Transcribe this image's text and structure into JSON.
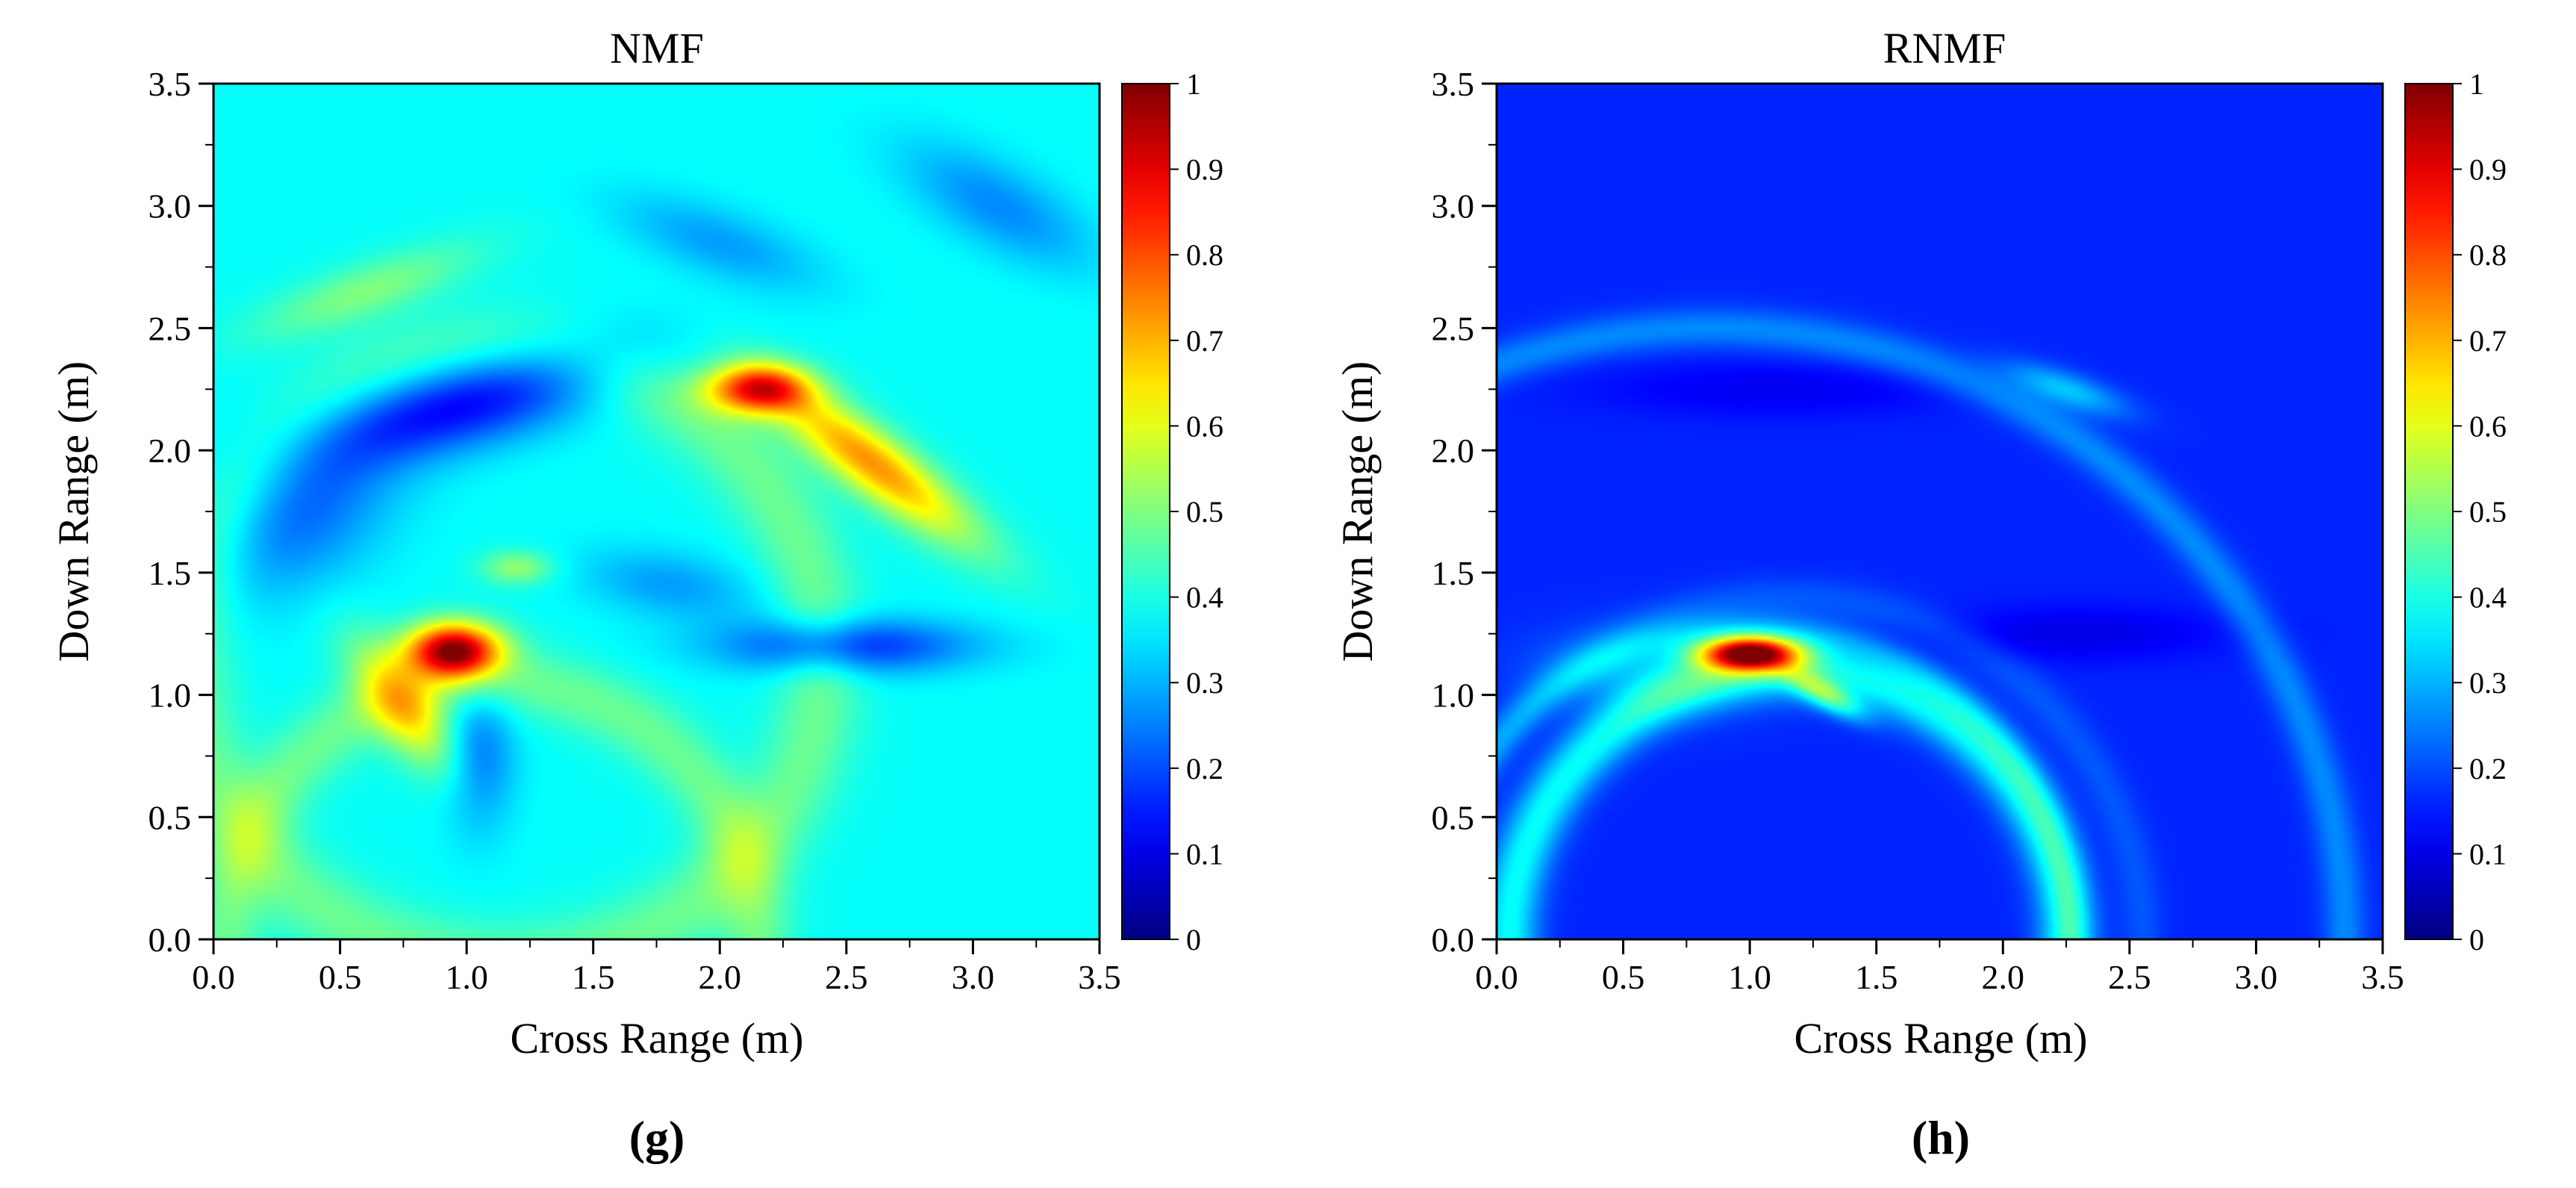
{
  "chart_data": [
    {
      "type": "heatmap",
      "title": "NMF",
      "panel_label_prefix": "(",
      "panel_label_letter": "g",
      "panel_label_suffix": ")",
      "xlabel": "Cross Range (m)",
      "ylabel": "Down Range (m)",
      "xlim": [
        0.0,
        3.5
      ],
      "ylim": [
        0.0,
        3.5
      ],
      "xticks": [
        "0.0",
        "0.5",
        "1.0",
        "1.5",
        "2.0",
        "2.5",
        "3.0",
        "3.5"
      ],
      "yticks": [
        "0.0",
        "0.5",
        "1.0",
        "1.5",
        "2.0",
        "2.5",
        "3.0",
        "3.5"
      ],
      "colorbar": {
        "min": 0,
        "max": 1,
        "ticks": [
          "0",
          "0.1",
          "0.2",
          "0.3",
          "0.4",
          "0.5",
          "0.6",
          "0.7",
          "0.8",
          "0.9",
          "1"
        ]
      },
      "base_level": 0.38,
      "features": [
        {
          "kind": "blob",
          "x": 0.95,
          "y": 1.18,
          "sx": 0.13,
          "sy": 0.08,
          "angle": 0,
          "value": 0.62
        },
        {
          "kind": "blob",
          "x": 0.75,
          "y": 0.95,
          "sx": 0.09,
          "sy": 0.22,
          "angle": 35,
          "value": 0.25
        },
        {
          "kind": "blob",
          "x": 2.15,
          "y": 2.25,
          "sx": 0.14,
          "sy": 0.07,
          "angle": 0,
          "value": 0.45
        },
        {
          "kind": "blob",
          "x": 2.6,
          "y": 1.95,
          "sx": 0.35,
          "sy": 0.09,
          "angle": -38,
          "value": 0.35
        },
        {
          "kind": "blob",
          "x": 1.2,
          "y": 1.52,
          "sx": 0.1,
          "sy": 0.05,
          "angle": 0,
          "value": 0.14
        },
        {
          "kind": "blob",
          "x": 0.6,
          "y": 2.65,
          "sx": 0.32,
          "sy": 0.08,
          "angle": 20,
          "value": 0.12
        },
        {
          "kind": "blob",
          "x": 1.0,
          "y": 2.2,
          "sx": 0.45,
          "sy": 0.13,
          "angle": 15,
          "value": -0.27
        },
        {
          "kind": "blob",
          "x": 0.35,
          "y": 1.75,
          "sx": 0.3,
          "sy": 0.2,
          "angle": 40,
          "value": -0.15
        },
        {
          "kind": "blob",
          "x": 2.5,
          "y": 1.2,
          "sx": 0.35,
          "sy": 0.08,
          "angle": 0,
          "value": -0.22
        },
        {
          "kind": "blob",
          "x": 1.8,
          "y": 1.45,
          "sx": 0.25,
          "sy": 0.1,
          "angle": -10,
          "value": -0.1
        },
        {
          "kind": "blob",
          "x": 2.0,
          "y": 2.85,
          "sx": 0.3,
          "sy": 0.1,
          "angle": -20,
          "value": -0.1
        },
        {
          "kind": "blob",
          "x": 1.05,
          "y": 0.75,
          "sx": 0.1,
          "sy": 0.22,
          "angle": 0,
          "value": -0.14
        },
        {
          "kind": "blob",
          "x": 3.1,
          "y": 3.0,
          "sx": 0.3,
          "sy": 0.12,
          "angle": -30,
          "value": -0.12
        },
        {
          "kind": "arc",
          "x": 1.15,
          "y": 1.15,
          "r": 1.25,
          "width": 0.12,
          "value": 0.1
        },
        {
          "kind": "arc",
          "x": 1.1,
          "y": 0.0,
          "r": 1.05,
          "width": 0.1,
          "value": 0.1
        }
      ]
    },
    {
      "type": "heatmap",
      "title": "RNMF",
      "panel_label_prefix": "(",
      "panel_label_letter": "h",
      "panel_label_suffix": ")",
      "xlabel": "Cross Range (m)",
      "ylabel": "Down Range (m)",
      "xlim": [
        0.0,
        3.5
      ],
      "ylim": [
        0.0,
        3.5
      ],
      "xticks": [
        "0.0",
        "0.5",
        "1.0",
        "1.5",
        "2.0",
        "2.5",
        "3.0",
        "3.5"
      ],
      "yticks": [
        "0.0",
        "0.5",
        "1.0",
        "1.5",
        "2.0",
        "2.5",
        "3.0",
        "3.5"
      ],
      "colorbar": {
        "min": 0,
        "max": 1,
        "ticks": [
          "0",
          "0.1",
          "0.2",
          "0.3",
          "0.4",
          "0.5",
          "0.6",
          "0.7",
          "0.8",
          "0.9",
          "1"
        ]
      },
      "base_level": 0.16,
      "features": [
        {
          "kind": "blob",
          "x": 1.0,
          "y": 1.17,
          "sx": 0.14,
          "sy": 0.05,
          "angle": 0,
          "value": 0.78
        },
        {
          "kind": "blob",
          "x": 1.3,
          "y": 1.0,
          "sx": 0.12,
          "sy": 0.04,
          "angle": -30,
          "value": 0.25
        },
        {
          "kind": "blob",
          "x": 0.6,
          "y": 1.1,
          "sx": 0.3,
          "sy": 0.12,
          "angle": 0,
          "value": 0.12
        },
        {
          "kind": "blob",
          "x": 2.25,
          "y": 2.25,
          "sx": 0.18,
          "sy": 0.05,
          "angle": -20,
          "value": 0.16
        },
        {
          "kind": "blob",
          "x": 2.3,
          "y": 1.25,
          "sx": 0.4,
          "sy": 0.08,
          "angle": 0,
          "value": -0.06
        },
        {
          "kind": "blob",
          "x": 1.1,
          "y": 2.25,
          "sx": 0.5,
          "sy": 0.08,
          "angle": 0,
          "value": -0.05
        },
        {
          "kind": "arc",
          "x": 1.15,
          "y": 0.0,
          "r": 1.1,
          "width": 0.08,
          "value": 0.22
        },
        {
          "kind": "arc",
          "x": 1.15,
          "y": 0.0,
          "r": 1.4,
          "width": 0.06,
          "value": 0.05
        },
        {
          "kind": "arc",
          "x": 0.85,
          "y": 0.0,
          "r": 2.5,
          "width": 0.06,
          "value": 0.1
        },
        {
          "kind": "arc",
          "x": 1.0,
          "y": 0.0,
          "r": 1.28,
          "width": 0.05,
          "value": 0.08
        }
      ]
    }
  ]
}
